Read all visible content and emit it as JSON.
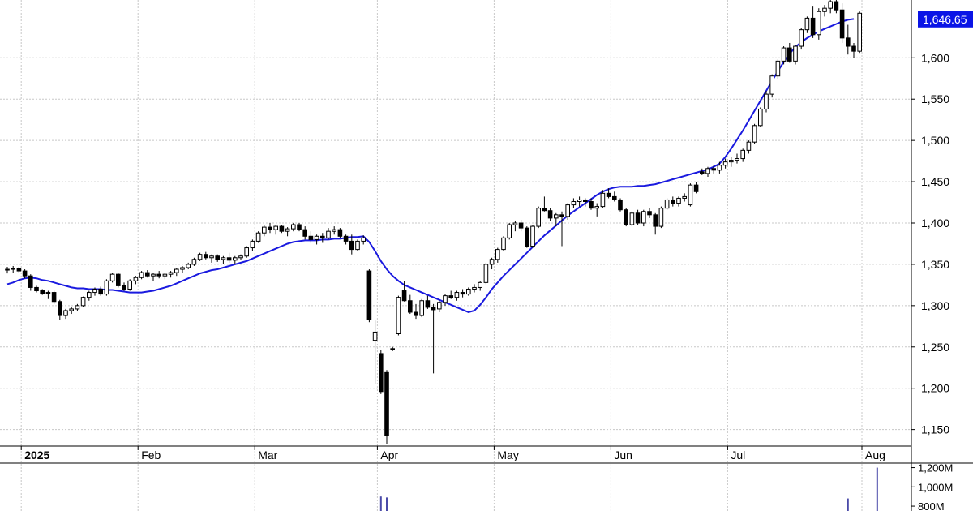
{
  "chart_data": {
    "type": "candlestick",
    "price_axis": {
      "ylim": [
        1130,
        1670
      ],
      "ticks": [
        1150,
        1200,
        1250,
        1300,
        1350,
        1400,
        1450,
        1500,
        1550,
        1600
      ],
      "tick_labels": [
        "1,150",
        "1,200",
        "1,250",
        "1,300",
        "1,350",
        "1,400",
        "1,450",
        "1,500",
        "1,550",
        "1,600"
      ]
    },
    "last_price_label": "1,646.65",
    "last_price": 1646.65,
    "volume_axis": {
      "ylim": [
        750,
        1230
      ],
      "ticks": [
        800,
        1000,
        1200
      ],
      "tick_labels": [
        "800M",
        "1,000M",
        "1,200M"
      ]
    },
    "x_axis": {
      "labels": [
        {
          "text": "2025",
          "index": 1,
          "bold": true
        },
        {
          "text": "Feb",
          "index": 21,
          "bold": false
        },
        {
          "text": "Mar",
          "index": 41,
          "bold": false
        },
        {
          "text": "Apr",
          "index": 62,
          "bold": false
        },
        {
          "text": "May",
          "index": 82,
          "bold": false
        },
        {
          "text": "Jun",
          "index": 102,
          "bold": false
        },
        {
          "text": "Jul",
          "index": 122,
          "bold": false
        },
        {
          "text": "Aug",
          "index": 145,
          "bold": false
        }
      ]
    },
    "ohlc": [
      [
        1343,
        1347,
        1339,
        1344
      ],
      [
        1344,
        1348,
        1340,
        1345
      ],
      [
        1345,
        1347,
        1340,
        1342
      ],
      [
        1342,
        1344,
        1333,
        1336
      ],
      [
        1336,
        1338,
        1318,
        1322
      ],
      [
        1322,
        1324,
        1316,
        1318
      ],
      [
        1318,
        1320,
        1313,
        1315
      ],
      [
        1315,
        1318,
        1308,
        1316
      ],
      [
        1316,
        1318,
        1302,
        1305
      ],
      [
        1305,
        1307,
        1283,
        1288
      ],
      [
        1288,
        1296,
        1284,
        1294
      ],
      [
        1294,
        1298,
        1290,
        1296
      ],
      [
        1296,
        1302,
        1293,
        1300
      ],
      [
        1300,
        1311,
        1298,
        1310
      ],
      [
        1310,
        1318,
        1306,
        1316
      ],
      [
        1316,
        1322,
        1312,
        1320
      ],
      [
        1320,
        1323,
        1312,
        1314
      ],
      [
        1314,
        1332,
        1312,
        1330
      ],
      [
        1330,
        1340,
        1328,
        1338
      ],
      [
        1338,
        1340,
        1322,
        1324
      ],
      [
        1324,
        1328,
        1318,
        1320
      ],
      [
        1320,
        1332,
        1318,
        1330
      ],
      [
        1330,
        1336,
        1326,
        1334
      ],
      [
        1334,
        1342,
        1332,
        1340
      ],
      [
        1340,
        1343,
        1334,
        1336
      ],
      [
        1336,
        1340,
        1330,
        1338
      ],
      [
        1338,
        1342,
        1333,
        1336
      ],
      [
        1336,
        1340,
        1332,
        1338
      ],
      [
        1338,
        1342,
        1334,
        1340
      ],
      [
        1340,
        1346,
        1336,
        1344
      ],
      [
        1344,
        1348,
        1340,
        1346
      ],
      [
        1346,
        1352,
        1344,
        1350
      ],
      [
        1350,
        1358,
        1348,
        1356
      ],
      [
        1356,
        1364,
        1354,
        1362
      ],
      [
        1362,
        1365,
        1356,
        1358
      ],
      [
        1358,
        1362,
        1352,
        1360
      ],
      [
        1360,
        1362,
        1353,
        1356
      ],
      [
        1356,
        1360,
        1350,
        1358
      ],
      [
        1358,
        1364,
        1352,
        1355
      ],
      [
        1355,
        1360,
        1350,
        1358
      ],
      [
        1358,
        1362,
        1355,
        1360
      ],
      [
        1360,
        1372,
        1358,
        1370
      ],
      [
        1370,
        1380,
        1366,
        1378
      ],
      [
        1378,
        1390,
        1376,
        1388
      ],
      [
        1388,
        1397,
        1384,
        1395
      ],
      [
        1395,
        1400,
        1388,
        1392
      ],
      [
        1392,
        1398,
        1386,
        1396
      ],
      [
        1396,
        1398,
        1388,
        1390
      ],
      [
        1390,
        1395,
        1384,
        1393
      ],
      [
        1393,
        1400,
        1390,
        1398
      ],
      [
        1398,
        1400,
        1390,
        1392
      ],
      [
        1392,
        1396,
        1380,
        1384
      ],
      [
        1384,
        1390,
        1376,
        1380
      ],
      [
        1380,
        1386,
        1374,
        1384
      ],
      [
        1384,
        1388,
        1376,
        1382
      ],
      [
        1382,
        1394,
        1380,
        1390
      ],
      [
        1390,
        1396,
        1386,
        1392
      ],
      [
        1392,
        1394,
        1382,
        1384
      ],
      [
        1384,
        1386,
        1374,
        1378
      ],
      [
        1378,
        1386,
        1362,
        1368
      ],
      [
        1368,
        1380,
        1366,
        1378
      ],
      [
        1378,
        1385,
        1374,
        1382
      ],
      [
        1342,
        1344,
        1280,
        1283
      ],
      [
        1258,
        1282,
        1205,
        1268
      ],
      [
        1242,
        1246,
        1193,
        1196
      ],
      [
        1219,
        1222,
        1133,
        1143
      ],
      [
        1248,
        1250,
        1245,
        1247
      ],
      [
        1266,
        1312,
        1264,
        1310
      ],
      [
        1318,
        1330,
        1305,
        1306
      ],
      [
        1306,
        1313,
        1290,
        1292
      ],
      [
        1292,
        1302,
        1284,
        1288
      ],
      [
        1288,
        1308,
        1286,
        1306
      ],
      [
        1306,
        1312,
        1296,
        1298
      ],
      [
        1298,
        1302,
        1218,
        1295
      ],
      [
        1296,
        1306,
        1292,
        1304
      ],
      [
        1304,
        1314,
        1300,
        1312
      ],
      [
        1312,
        1318,
        1308,
        1310
      ],
      [
        1310,
        1318,
        1306,
        1316
      ],
      [
        1316,
        1320,
        1310,
        1314
      ],
      [
        1314,
        1322,
        1312,
        1320
      ],
      [
        1320,
        1326,
        1316,
        1322
      ],
      [
        1322,
        1330,
        1318,
        1328
      ],
      [
        1328,
        1352,
        1326,
        1350
      ],
      [
        1350,
        1358,
        1344,
        1356
      ],
      [
        1356,
        1370,
        1352,
        1368
      ],
      [
        1368,
        1384,
        1366,
        1382
      ],
      [
        1382,
        1400,
        1380,
        1398
      ],
      [
        1398,
        1402,
        1390,
        1400
      ],
      [
        1400,
        1404,
        1390,
        1394
      ],
      [
        1394,
        1396,
        1370,
        1372
      ],
      [
        1372,
        1398,
        1370,
        1396
      ],
      [
        1396,
        1420,
        1394,
        1418
      ],
      [
        1418,
        1432,
        1414,
        1415
      ],
      [
        1415,
        1418,
        1402,
        1406
      ],
      [
        1406,
        1412,
        1396,
        1410
      ],
      [
        1410,
        1414,
        1372,
        1408
      ],
      [
        1408,
        1424,
        1404,
        1422
      ],
      [
        1422,
        1430,
        1418,
        1426
      ],
      [
        1426,
        1432,
        1420,
        1428
      ],
      [
        1428,
        1430,
        1420,
        1426
      ],
      [
        1426,
        1430,
        1416,
        1418
      ],
      [
        1418,
        1424,
        1408,
        1420
      ],
      [
        1420,
        1440,
        1418,
        1436
      ],
      [
        1436,
        1442,
        1430,
        1432
      ],
      [
        1432,
        1438,
        1426,
        1428
      ],
      [
        1428,
        1430,
        1414,
        1416
      ],
      [
        1416,
        1418,
        1396,
        1398
      ],
      [
        1398,
        1414,
        1396,
        1412
      ],
      [
        1412,
        1416,
        1398,
        1400
      ],
      [
        1400,
        1416,
        1396,
        1414
      ],
      [
        1414,
        1418,
        1406,
        1410
      ],
      [
        1410,
        1412,
        1386,
        1396
      ],
      [
        1396,
        1420,
        1394,
        1418
      ],
      [
        1418,
        1430,
        1416,
        1428
      ],
      [
        1428,
        1432,
        1420,
        1424
      ],
      [
        1424,
        1432,
        1420,
        1430
      ],
      [
        1430,
        1436,
        1426,
        1432
      ],
      [
        1422,
        1448,
        1420,
        1446
      ],
      [
        1446,
        1450,
        1436,
        1438
      ],
      [
        1462,
        1466,
        1458,
        1460
      ],
      [
        1460,
        1468,
        1456,
        1466
      ],
      [
        1466,
        1470,
        1460,
        1464
      ],
      [
        1464,
        1474,
        1460,
        1470
      ],
      [
        1470,
        1478,
        1466,
        1474
      ],
      [
        1474,
        1480,
        1468,
        1476
      ],
      [
        1476,
        1484,
        1472,
        1478
      ],
      [
        1478,
        1490,
        1474,
        1488
      ],
      [
        1488,
        1500,
        1484,
        1498
      ],
      [
        1498,
        1520,
        1496,
        1518
      ],
      [
        1518,
        1540,
        1516,
        1538
      ],
      [
        1538,
        1560,
        1534,
        1556
      ],
      [
        1556,
        1580,
        1552,
        1578
      ],
      [
        1578,
        1598,
        1574,
        1596
      ],
      [
        1596,
        1614,
        1592,
        1612
      ],
      [
        1612,
        1618,
        1594,
        1596
      ],
      [
        1596,
        1616,
        1592,
        1614
      ],
      [
        1614,
        1636,
        1610,
        1634
      ],
      [
        1634,
        1650,
        1630,
        1648
      ],
      [
        1648,
        1662,
        1624,
        1628
      ],
      [
        1628,
        1660,
        1622,
        1656
      ],
      [
        1656,
        1664,
        1650,
        1660
      ],
      [
        1660,
        1670,
        1654,
        1668
      ],
      [
        1668,
        1670,
        1654,
        1658
      ],
      [
        1658,
        1666,
        1618,
        1624
      ],
      [
        1624,
        1640,
        1604,
        1614
      ],
      [
        1614,
        1618,
        1600,
        1608
      ],
      [
        1608,
        1656,
        1606,
        1654
      ]
    ],
    "ma_series_label": "",
    "ma": [
      1326,
      1328,
      1331,
      1333,
      1334,
      1333,
      1331,
      1330,
      1328,
      1326,
      1324,
      1322,
      1321,
      1321,
      1320,
      1320,
      1320,
      1319,
      1319,
      1318,
      1317,
      1316,
      1316,
      1316,
      1317,
      1318,
      1320,
      1322,
      1324,
      1327,
      1330,
      1333,
      1336,
      1339,
      1341,
      1343,
      1344,
      1346,
      1348,
      1350,
      1352,
      1354,
      1357,
      1360,
      1363,
      1366,
      1369,
      1372,
      1375,
      1377,
      1378,
      1379,
      1379,
      1379,
      1380,
      1380,
      1381,
      1381,
      1382,
      1383,
      1383,
      1384,
      1377,
      1366,
      1354,
      1344,
      1336,
      1330,
      1325,
      1322,
      1319,
      1316,
      1313,
      1310,
      1307,
      1304,
      1301,
      1298,
      1295,
      1292,
      1294,
      1301,
      1310,
      1320,
      1328,
      1336,
      1343,
      1350,
      1357,
      1364,
      1371,
      1378,
      1385,
      1391,
      1397,
      1403,
      1409,
      1414,
      1419,
      1424,
      1429,
      1434,
      1438,
      1441,
      1443,
      1444,
      1444,
      1444,
      1445,
      1445,
      1446,
      1447,
      1449,
      1451,
      1453,
      1455,
      1457,
      1459,
      1461,
      1463,
      1465,
      1468,
      1472,
      1480,
      1490,
      1501,
      1512,
      1524,
      1536,
      1548,
      1560,
      1572,
      1584,
      1595,
      1605,
      1613,
      1619,
      1624,
      1628,
      1632,
      1635,
      1638,
      1641,
      1644,
      1646,
      1647
    ],
    "volume": [
      {
        "index": 64,
        "value": 900
      },
      {
        "index": 65,
        "value": 890
      },
      {
        "index": 144,
        "value": 880
      },
      {
        "index": 149,
        "value": 1200
      }
    ]
  }
}
